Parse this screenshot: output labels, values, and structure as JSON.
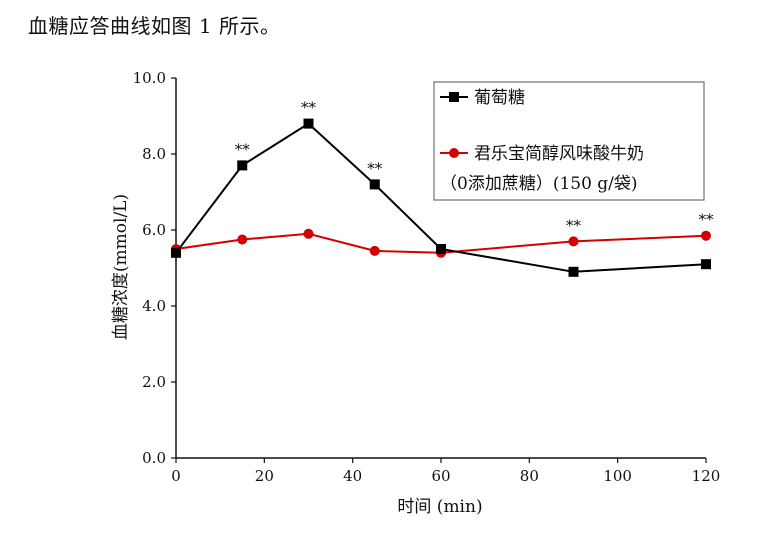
{
  "caption": "血糖应答曲线如图 1 所示。",
  "chart_data": {
    "type": "line",
    "xlabel": "时间 (min)",
    "ylabel": "血糖浓度(mmol/L)",
    "xlim": [
      0,
      120
    ],
    "ylim": [
      0,
      10
    ],
    "x_ticks": [
      "0",
      "20",
      "40",
      "60",
      "80",
      "100",
      "120"
    ],
    "y_ticks": [
      "0.0",
      "2.0",
      "4.0",
      "6.0",
      "8.0",
      "10.0"
    ],
    "grid": false,
    "legend_position": "top-right",
    "series": [
      {
        "name": "葡萄糖",
        "color": "#000000",
        "marker": "square",
        "x": [
          0,
          15,
          30,
          45,
          60,
          90,
          120
        ],
        "y": [
          5.4,
          7.7,
          8.8,
          7.2,
          5.5,
          4.9,
          5.1
        ]
      },
      {
        "name": "君乐宝简醇风味酸牛奶",
        "name_line2": "（0添加蔗糖）(150 g/袋)",
        "color": "#d40000",
        "marker": "circle",
        "x": [
          0,
          15,
          30,
          45,
          60,
          90,
          120
        ],
        "y": [
          5.5,
          5.75,
          5.9,
          5.45,
          5.4,
          5.7,
          5.85
        ]
      }
    ],
    "annotations": [
      {
        "x": 15,
        "y": 7.7,
        "text": "**"
      },
      {
        "x": 30,
        "y": 8.8,
        "text": "**"
      },
      {
        "x": 45,
        "y": 7.2,
        "text": "**"
      },
      {
        "x": 90,
        "y": 5.7,
        "text": "**"
      },
      {
        "x": 120,
        "y": 5.85,
        "text": "**"
      }
    ]
  }
}
